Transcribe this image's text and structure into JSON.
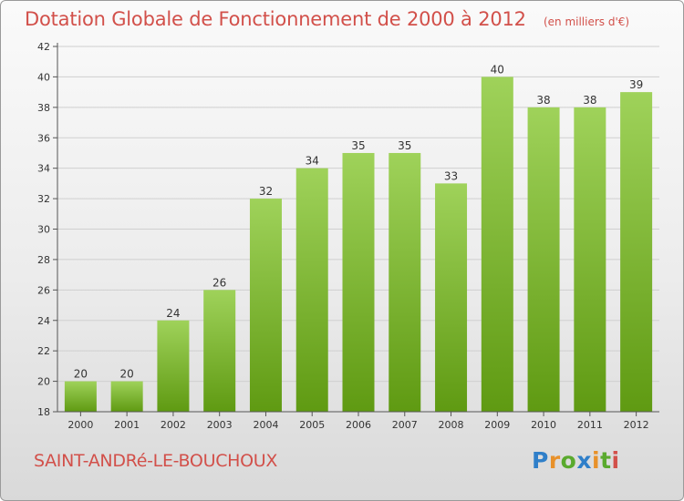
{
  "header": {
    "title": "Dotation Globale de Fonctionnement de 2000 à 2012",
    "subtitle": "(en milliers d'€)"
  },
  "footer": {
    "commune": "SAINT-ANDRé-LE-BOUCHOUX",
    "logo_text": "Proxiti"
  },
  "colors": {
    "title": "#d2504a",
    "bar_top": "#9fd25a",
    "bar_bottom": "#5f9a12",
    "grid": "#cfcfcf"
  },
  "chart_data": {
    "type": "bar",
    "title": "Dotation Globale de Fonctionnement de 2000 à 2012",
    "subtitle": "(en milliers d'€)",
    "xlabel": "",
    "ylabel": "",
    "categories": [
      "2000",
      "2001",
      "2002",
      "2003",
      "2004",
      "2005",
      "2006",
      "2007",
      "2008",
      "2009",
      "2010",
      "2011",
      "2012"
    ],
    "values": [
      20,
      20,
      24,
      26,
      32,
      34,
      35,
      35,
      33,
      40,
      38,
      38,
      39
    ],
    "ylim": [
      18,
      42
    ],
    "yticks": [
      18,
      20,
      22,
      24,
      26,
      28,
      30,
      32,
      34,
      36,
      38,
      40,
      42
    ],
    "grid": true,
    "legend": "none"
  }
}
